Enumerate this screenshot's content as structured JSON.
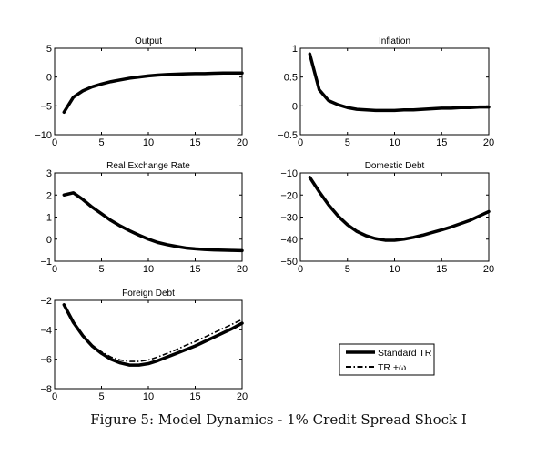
{
  "caption": "Figure 5: Model Dynamics - 1% Credit Spread Shock I",
  "legend": {
    "entries": [
      {
        "label": "Standard TR",
        "style": "solid"
      },
      {
        "label": "TR +ω",
        "style": "dash-dot"
      }
    ]
  },
  "chart_data": [
    {
      "type": "line",
      "title": "Output",
      "xlim": [
        0,
        20
      ],
      "ylim": [
        -10,
        5
      ],
      "xticks": [
        "0",
        "5",
        "10",
        "15",
        "20"
      ],
      "yticks": [
        "−10",
        "−5",
        "0",
        "5"
      ],
      "ytick_values": [
        -10,
        -5,
        0,
        5
      ],
      "x": [
        1,
        2,
        3,
        4,
        5,
        6,
        7,
        8,
        9,
        10,
        11,
        12,
        13,
        14,
        15,
        16,
        17,
        18,
        19,
        20
      ],
      "series": [
        {
          "name": "Standard TR",
          "values": [
            -6.1,
            -3.5,
            -2.4,
            -1.7,
            -1.2,
            -0.8,
            -0.5,
            -0.2,
            0.0,
            0.2,
            0.35,
            0.45,
            0.5,
            0.55,
            0.6,
            0.6,
            0.65,
            0.7,
            0.7,
            0.7
          ]
        },
        {
          "name": "TR +ω",
          "values": [
            -6.1,
            -3.5,
            -2.4,
            -1.7,
            -1.2,
            -0.8,
            -0.5,
            -0.2,
            0.0,
            0.2,
            0.35,
            0.45,
            0.5,
            0.55,
            0.6,
            0.6,
            0.65,
            0.7,
            0.7,
            0.7
          ]
        }
      ]
    },
    {
      "type": "line",
      "title": "Inflation",
      "xlim": [
        0,
        20
      ],
      "ylim": [
        -0.5,
        1
      ],
      "xticks": [
        "0",
        "5",
        "10",
        "15",
        "20"
      ],
      "yticks": [
        "−0.5",
        "0",
        "0.5",
        "1"
      ],
      "ytick_values": [
        -0.5,
        0,
        0.5,
        1
      ],
      "x": [
        1,
        2,
        3,
        4,
        5,
        6,
        7,
        8,
        9,
        10,
        11,
        12,
        13,
        14,
        15,
        16,
        17,
        18,
        19,
        20
      ],
      "series": [
        {
          "name": "Standard TR",
          "values": [
            0.9,
            0.28,
            0.09,
            0.02,
            -0.03,
            -0.06,
            -0.07,
            -0.08,
            -0.08,
            -0.08,
            -0.07,
            -0.07,
            -0.06,
            -0.05,
            -0.04,
            -0.04,
            -0.03,
            -0.03,
            -0.02,
            -0.02
          ]
        },
        {
          "name": "TR +ω",
          "values": [
            0.9,
            0.28,
            0.09,
            0.02,
            -0.03,
            -0.06,
            -0.07,
            -0.08,
            -0.08,
            -0.08,
            -0.07,
            -0.07,
            -0.06,
            -0.05,
            -0.04,
            -0.04,
            -0.03,
            -0.03,
            -0.02,
            -0.02
          ]
        }
      ]
    },
    {
      "type": "line",
      "title": "Real Exchange Rate",
      "xlim": [
        0,
        20
      ],
      "ylim": [
        -1,
        3
      ],
      "xticks": [
        "0",
        "5",
        "10",
        "15",
        "20"
      ],
      "yticks": [
        "−1",
        "0",
        "1",
        "2",
        "3"
      ],
      "ytick_values": [
        -1,
        0,
        1,
        2,
        3
      ],
      "x": [
        1,
        2,
        3,
        4,
        5,
        6,
        7,
        8,
        9,
        10,
        11,
        12,
        13,
        14,
        15,
        16,
        17,
        18,
        19,
        20
      ],
      "series": [
        {
          "name": "Standard TR",
          "values": [
            2.0,
            2.1,
            1.8,
            1.45,
            1.15,
            0.85,
            0.6,
            0.38,
            0.18,
            0.0,
            -0.15,
            -0.25,
            -0.33,
            -0.4,
            -0.44,
            -0.47,
            -0.49,
            -0.5,
            -0.51,
            -0.52
          ]
        },
        {
          "name": "TR +ω",
          "values": [
            2.0,
            2.1,
            1.8,
            1.45,
            1.15,
            0.85,
            0.6,
            0.38,
            0.18,
            0.0,
            -0.15,
            -0.25,
            -0.33,
            -0.4,
            -0.44,
            -0.47,
            -0.49,
            -0.5,
            -0.51,
            -0.52
          ]
        }
      ]
    },
    {
      "type": "line",
      "title": "Domestic Debt",
      "xlim": [
        0,
        20
      ],
      "ylim": [
        -50,
        -10
      ],
      "xticks": [
        "0",
        "5",
        "10",
        "15",
        "20"
      ],
      "yticks": [
        "−50",
        "−40",
        "−30",
        "−20",
        "−10"
      ],
      "ytick_values": [
        -50,
        -40,
        -30,
        -20,
        -10
      ],
      "x": [
        1,
        2,
        3,
        4,
        5,
        6,
        7,
        8,
        9,
        10,
        11,
        12,
        13,
        14,
        15,
        16,
        17,
        18,
        19,
        20
      ],
      "series": [
        {
          "name": "Standard TR",
          "values": [
            -12,
            -18.5,
            -24.5,
            -29.5,
            -33.5,
            -36.5,
            -38.5,
            -39.8,
            -40.5,
            -40.5,
            -40.0,
            -39.2,
            -38.2,
            -37.0,
            -35.8,
            -34.5,
            -33.0,
            -31.5,
            -29.5,
            -27.5
          ]
        },
        {
          "name": "TR +ω",
          "values": [
            -12,
            -18.5,
            -24.5,
            -29.5,
            -33.5,
            -36.5,
            -38.5,
            -39.8,
            -40.5,
            -40.5,
            -40.0,
            -39.2,
            -38.2,
            -37.0,
            -35.8,
            -34.5,
            -33.0,
            -31.5,
            -29.5,
            -27.5
          ]
        }
      ]
    },
    {
      "type": "line",
      "title": "Foreign Debt",
      "xlim": [
        0,
        20
      ],
      "ylim": [
        -8,
        -2
      ],
      "xticks": [
        "0",
        "5",
        "10",
        "15",
        "20"
      ],
      "yticks": [
        "−8",
        "−6",
        "−4",
        "−2"
      ],
      "ytick_values": [
        -8,
        -6,
        -4,
        -2
      ],
      "x": [
        1,
        2,
        3,
        4,
        5,
        6,
        7,
        8,
        9,
        10,
        11,
        12,
        13,
        14,
        15,
        16,
        17,
        18,
        19,
        20
      ],
      "series": [
        {
          "name": "Standard TR",
          "values": [
            -2.3,
            -3.5,
            -4.4,
            -5.1,
            -5.6,
            -6.0,
            -6.25,
            -6.4,
            -6.4,
            -6.3,
            -6.1,
            -5.85,
            -5.6,
            -5.35,
            -5.1,
            -4.8,
            -4.5,
            -4.2,
            -3.9,
            -3.55
          ]
        },
        {
          "name": "TR +ω",
          "values": [
            -2.3,
            -3.5,
            -4.4,
            -5.05,
            -5.5,
            -5.85,
            -6.05,
            -6.15,
            -6.15,
            -6.05,
            -5.85,
            -5.6,
            -5.35,
            -5.05,
            -4.8,
            -4.5,
            -4.2,
            -3.9,
            -3.6,
            -3.3
          ]
        }
      ]
    }
  ]
}
